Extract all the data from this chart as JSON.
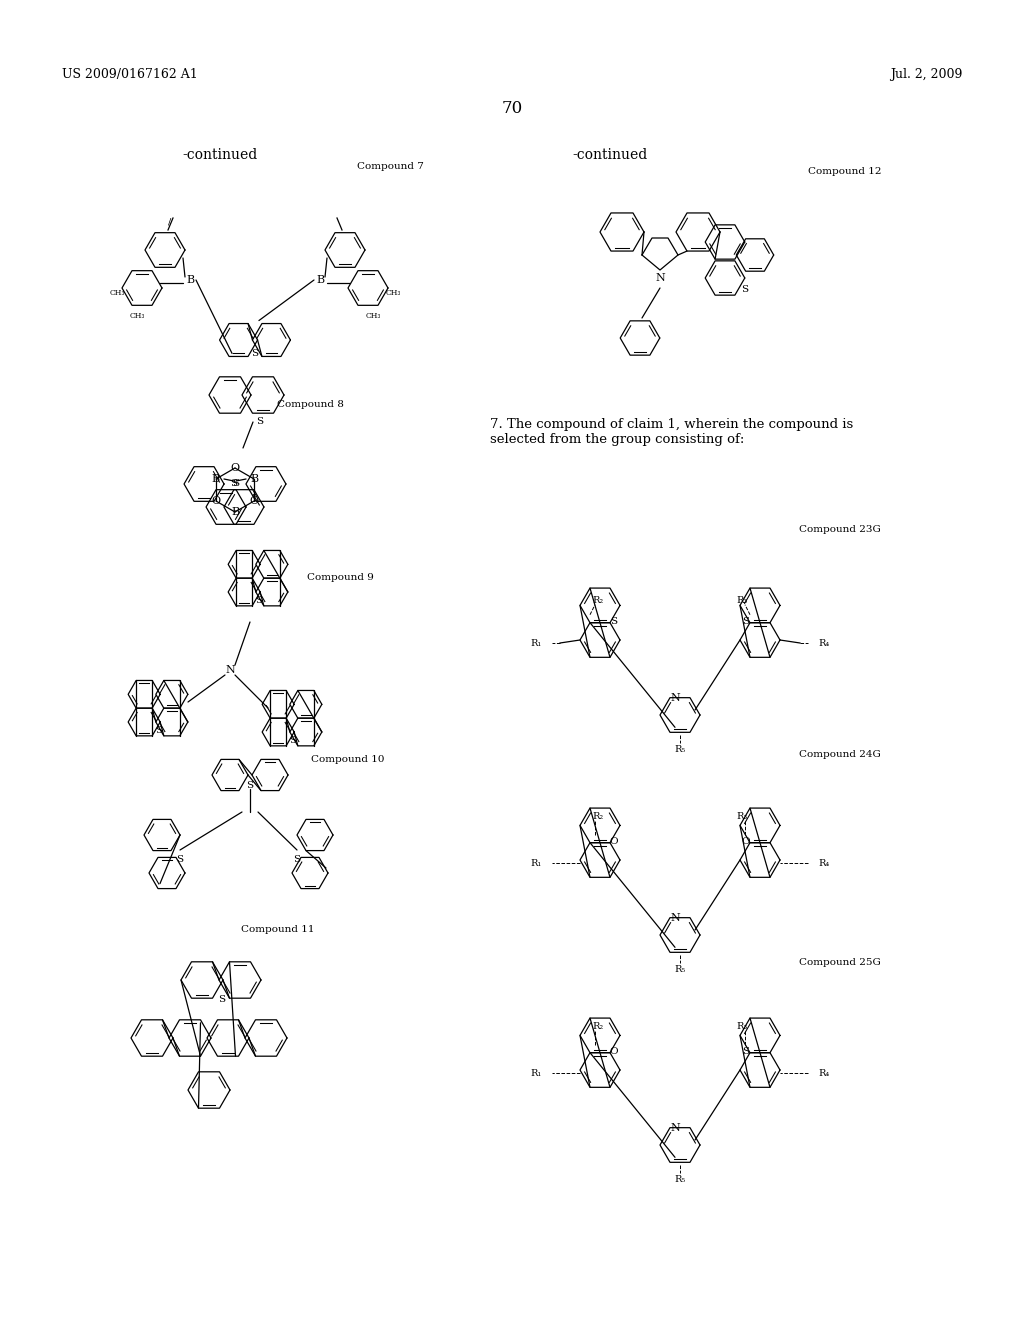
{
  "page_header_left": "US 2009/0167162 A1",
  "page_header_right": "Jul. 2, 2009",
  "page_number": "70",
  "background_color": "#ffffff",
  "text_color": "#000000",
  "continued_left": "-continued",
  "continued_right": "-continued",
  "compound7_label": "Compound 7",
  "compound8_label": "Compound 8",
  "compound9_label": "Compound 9",
  "compound10_label": "Compound 10",
  "compound11_label": "Compound 11",
  "compound12_label": "Compound 12",
  "compound23G_label": "Compound 23G",
  "compound24G_label": "Compound 24G",
  "compound25G_label": "Compound 25G",
  "claim7_text": "7. The compound of claim 1, wherein the compound is\nselected from the group consisting of:"
}
